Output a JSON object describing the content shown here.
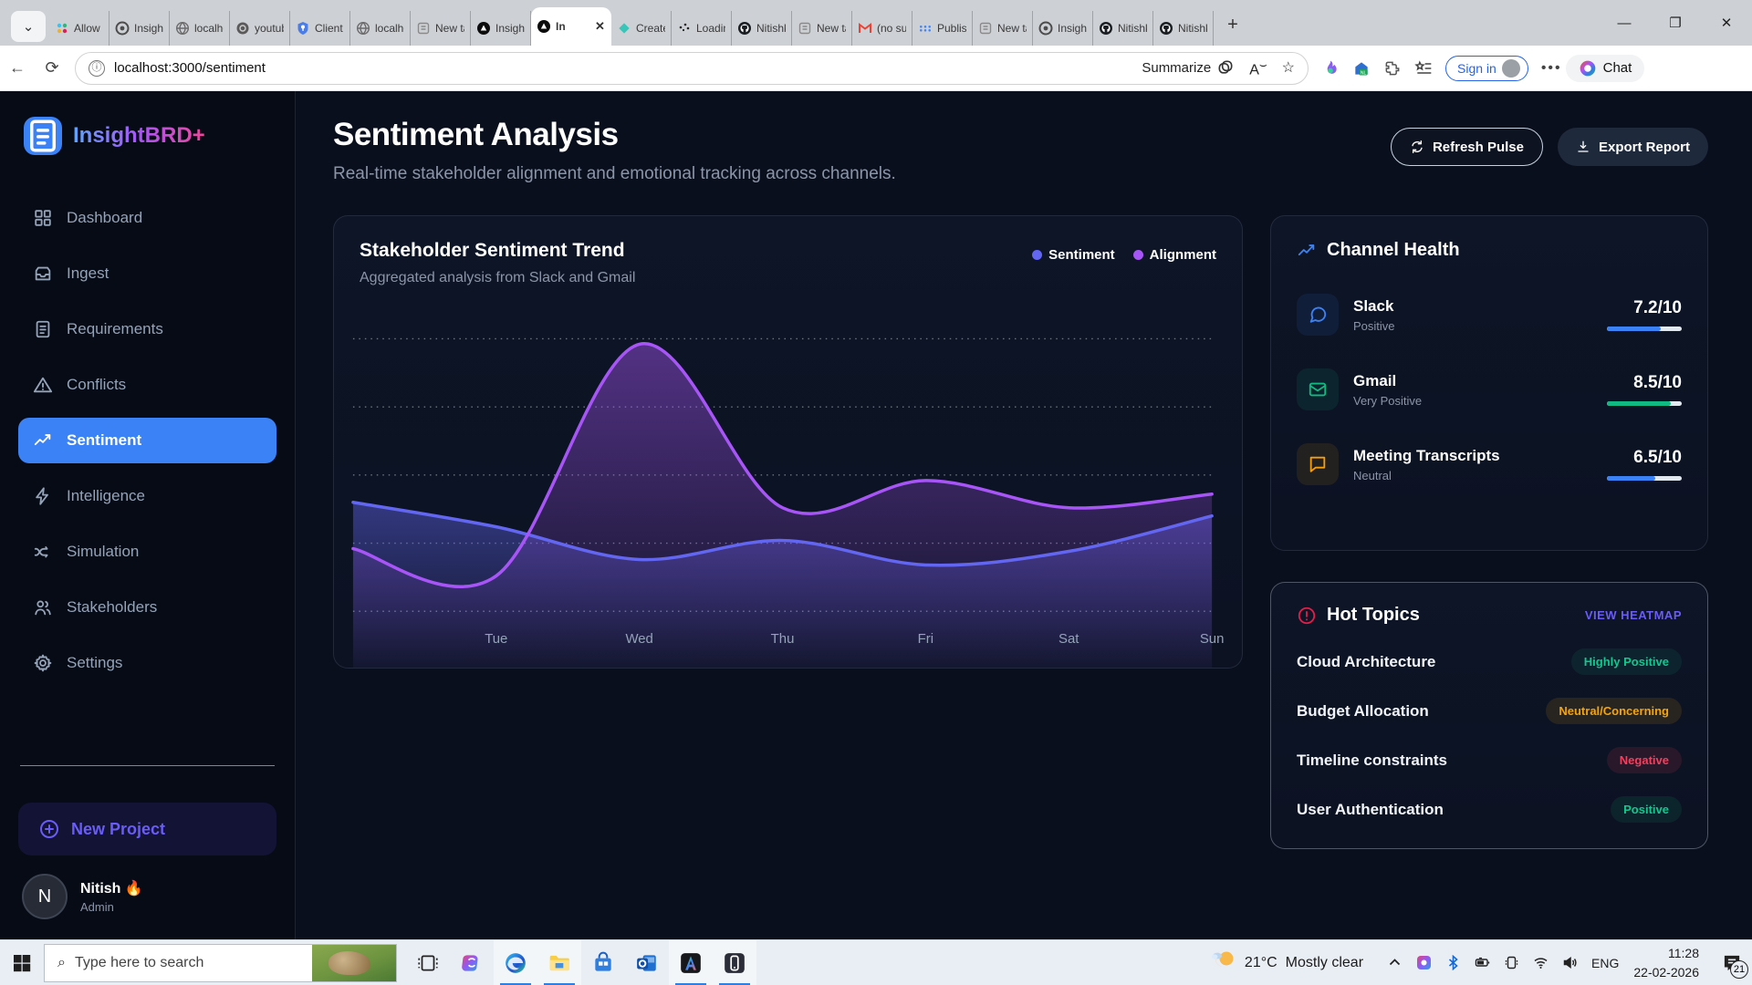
{
  "browser": {
    "tabs": [
      {
        "icon": "slack-icon",
        "label": "Allow t"
      },
      {
        "icon": "chatgpt-icon",
        "label": "Insight"
      },
      {
        "icon": "globe-icon",
        "label": "localho"
      },
      {
        "icon": "camera-icon",
        "label": "youtub"
      },
      {
        "icon": "key-icon",
        "label": "Client"
      },
      {
        "icon": "globe-icon",
        "label": "localho"
      },
      {
        "icon": "newtab-icon",
        "label": "New ta"
      },
      {
        "icon": "insight-app-icon",
        "label": "Insight"
      },
      {
        "icon": "insight-app-icon",
        "label": "In",
        "active": true
      },
      {
        "icon": "diamond-icon",
        "label": "Create"
      },
      {
        "icon": "dots-icon",
        "label": "Loadin"
      },
      {
        "icon": "github-icon",
        "label": "Nitishk"
      },
      {
        "icon": "newtab-icon",
        "label": "New ta"
      },
      {
        "icon": "gmail-icon",
        "label": "(no su"
      },
      {
        "icon": "meet-icon",
        "label": "Publis"
      },
      {
        "icon": "newtab-icon",
        "label": "New ta"
      },
      {
        "icon": "chatgpt-icon",
        "label": "Insight"
      },
      {
        "icon": "github-icon",
        "label": "Nitishk"
      },
      {
        "icon": "github-icon",
        "label": "Nitishk"
      }
    ],
    "window_controls": {
      "minimize": "—",
      "maximize": "❐",
      "close": "✕"
    },
    "url": "localhost:3000/sentiment",
    "summarize_label": "Summarize",
    "sign_in_label": "Sign in",
    "chat_label": "Chat"
  },
  "sidebar": {
    "logo_text": "InsightBRD+",
    "items": [
      {
        "icon": "dashboard",
        "label": "Dashboard"
      },
      {
        "icon": "ingest",
        "label": "Ingest"
      },
      {
        "icon": "requirements",
        "label": "Requirements"
      },
      {
        "icon": "conflicts",
        "label": "Conflicts"
      },
      {
        "icon": "sentiment",
        "label": "Sentiment",
        "active": true
      },
      {
        "icon": "intelligence",
        "label": "Intelligence"
      },
      {
        "icon": "simulation",
        "label": "Simulation"
      },
      {
        "icon": "stakeholders",
        "label": "Stakeholders"
      },
      {
        "icon": "settings",
        "label": "Settings"
      }
    ],
    "new_project_label": "New Project",
    "user": {
      "initial": "N",
      "name": "Nitish 🔥",
      "role": "Admin"
    }
  },
  "header": {
    "title": "Sentiment Analysis",
    "subtitle": "Real-time stakeholder alignment and emotional tracking across channels.",
    "refresh_label": "Refresh Pulse",
    "export_label": "Export Report"
  },
  "chart_card": {
    "title": "Stakeholder Sentiment Trend",
    "subtitle": "Aggregated analysis from Slack and Gmail",
    "legend": [
      {
        "label": "Sentiment",
        "color": "#6366f1"
      },
      {
        "label": "Alignment",
        "color": "#a855f7"
      }
    ]
  },
  "chart_data": {
    "type": "area",
    "x_labels": [
      "",
      "Tue",
      "Wed",
      "Thu",
      "Fri",
      "Sat",
      "Sun"
    ],
    "series": [
      {
        "name": "Sentiment",
        "color": "#6366f1",
        "values": [
          4.0,
          3.1,
          1.9,
          2.6,
          1.7,
          2.2,
          3.5
        ]
      },
      {
        "name": "Alignment",
        "color": "#a855f7",
        "values": [
          2.3,
          1.3,
          9.8,
          3.8,
          4.8,
          3.8,
          4.3
        ]
      }
    ],
    "ylim": [
      0,
      10
    ],
    "grid": "dashed-horizontal",
    "legend_position": "top-right"
  },
  "channel_health": {
    "title": "Channel Health",
    "items": [
      {
        "icon": "chat-bubble",
        "name": "Slack",
        "status": "Positive",
        "score_label": "7.2/10",
        "score": 7.2,
        "color": "#3b82f6"
      },
      {
        "icon": "envelope",
        "name": "Gmail",
        "status": "Very Positive",
        "score_label": "8.5/10",
        "score": 8.5,
        "color": "#10b981"
      },
      {
        "icon": "square-bubble",
        "name": "Meeting Transcripts",
        "status": "Neutral",
        "score_label": "6.5/10",
        "score": 6.5,
        "color": "#f59e0b",
        "bar_color": "#3b82f6"
      }
    ]
  },
  "hot_topics": {
    "title": "Hot Topics",
    "link": "VIEW HEATMAP",
    "items": [
      {
        "topic": "Cloud Architecture",
        "badge": "Highly Positive",
        "tone": "green"
      },
      {
        "topic": "Budget Allocation",
        "badge": "Neutral/Concerning",
        "tone": "amber"
      },
      {
        "topic": "Timeline constraints",
        "badge": "Negative",
        "tone": "red"
      },
      {
        "topic": "User Authentication",
        "badge": "Positive",
        "tone": "green"
      }
    ]
  },
  "taskbar": {
    "search_placeholder": "Type here to search",
    "apps": [
      {
        "icon": "task-view-icon",
        "open": false
      },
      {
        "icon": "copilot-icon",
        "open": false
      },
      {
        "icon": "edge-icon",
        "open": true
      },
      {
        "icon": "file-explorer-icon",
        "open": true
      },
      {
        "icon": "store-icon",
        "open": false
      },
      {
        "icon": "outlook-icon",
        "open": false
      },
      {
        "icon": "android-studio-icon",
        "open": true
      },
      {
        "icon": "phone-link-icon",
        "open": true
      }
    ],
    "weather": {
      "temp": "21°C",
      "condition": "Mostly clear"
    },
    "language": "ENG",
    "time": "11:28",
    "date": "22-02-2026",
    "notification_count": "21"
  }
}
